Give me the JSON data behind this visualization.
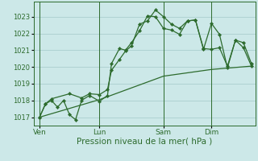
{
  "bg_color": "#cce8e8",
  "grid_color": "#aacece",
  "line_color": "#2d6b2d",
  "xlabel": "Pression niveau de la mer( hPa )",
  "xlabel_fontsize": 7.5,
  "ylim": [
    1016.5,
    1023.9
  ],
  "yticks": [
    1017,
    1018,
    1019,
    1020,
    1021,
    1022,
    1023
  ],
  "ytick_fontsize": 6.0,
  "xtick_labels": [
    "Ven",
    "Lun",
    "Sam",
    "Dim"
  ],
  "xtick_positions": [
    0,
    30,
    62,
    86
  ],
  "vline_positions": [
    0,
    30,
    62,
    86
  ],
  "xlim": [
    -3,
    108
  ],
  "series1": [
    [
      0,
      1017.0
    ],
    [
      3,
      1017.8
    ],
    [
      6,
      1018.0
    ],
    [
      9,
      1017.6
    ],
    [
      12,
      1018.0
    ],
    [
      15,
      1017.15
    ],
    [
      18,
      1016.85
    ],
    [
      21,
      1018.0
    ],
    [
      25,
      1018.3
    ],
    [
      30,
      1017.95
    ],
    [
      34,
      1018.3
    ],
    [
      36,
      1020.2
    ],
    [
      40,
      1021.1
    ],
    [
      43,
      1021.0
    ],
    [
      46,
      1021.45
    ],
    [
      50,
      1022.15
    ],
    [
      54,
      1023.05
    ],
    [
      58,
      1023.0
    ],
    [
      62,
      1022.3
    ],
    [
      66,
      1022.2
    ],
    [
      70,
      1021.95
    ],
    [
      74,
      1022.75
    ],
    [
      78,
      1022.8
    ],
    [
      82,
      1021.1
    ],
    [
      86,
      1021.05
    ],
    [
      90,
      1021.15
    ],
    [
      94,
      1020.05
    ],
    [
      98,
      1021.6
    ],
    [
      102,
      1021.15
    ],
    [
      106,
      1020.05
    ]
  ],
  "series2": [
    [
      0,
      1017.0
    ],
    [
      3,
      1017.8
    ],
    [
      6,
      1018.1
    ],
    [
      15,
      1018.4
    ],
    [
      21,
      1018.15
    ],
    [
      25,
      1018.4
    ],
    [
      30,
      1018.35
    ],
    [
      34,
      1018.65
    ],
    [
      36,
      1019.8
    ],
    [
      40,
      1020.45
    ],
    [
      43,
      1020.95
    ],
    [
      46,
      1021.25
    ],
    [
      50,
      1022.55
    ],
    [
      54,
      1022.75
    ],
    [
      58,
      1023.4
    ],
    [
      62,
      1023.0
    ],
    [
      66,
      1022.55
    ],
    [
      70,
      1022.3
    ],
    [
      74,
      1022.75
    ],
    [
      78,
      1022.8
    ],
    [
      82,
      1021.05
    ],
    [
      86,
      1022.6
    ],
    [
      90,
      1021.95
    ],
    [
      94,
      1019.95
    ],
    [
      98,
      1021.6
    ],
    [
      102,
      1021.45
    ],
    [
      106,
      1020.2
    ]
  ],
  "series3": [
    [
      0,
      1017.0
    ],
    [
      30,
      1018.05
    ],
    [
      62,
      1019.45
    ],
    [
      86,
      1019.85
    ],
    [
      106,
      1020.05
    ]
  ]
}
